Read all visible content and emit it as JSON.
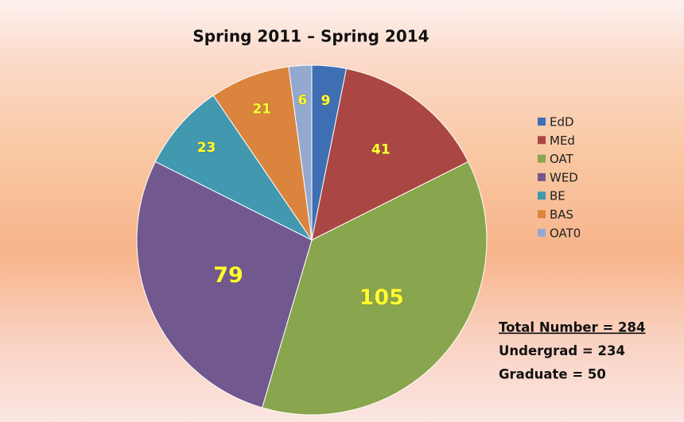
{
  "chart_data": {
    "type": "pie",
    "title": "Spring 2011 – Spring 2014",
    "categories": [
      "EdD",
      "MEd",
      "OAT",
      "WED",
      "BE",
      "BAS",
      "OAT0"
    ],
    "values": [
      9,
      41,
      105,
      79,
      23,
      21,
      6
    ],
    "colors": [
      "#3f6fb3",
      "#aa4643",
      "#89a54e",
      "#71588f",
      "#4198af",
      "#db843d",
      "#93a9cf"
    ],
    "legend": "right",
    "annotations": [
      "Total Number = 284",
      "Undergrad = 234",
      "Graduate = 50"
    ]
  }
}
